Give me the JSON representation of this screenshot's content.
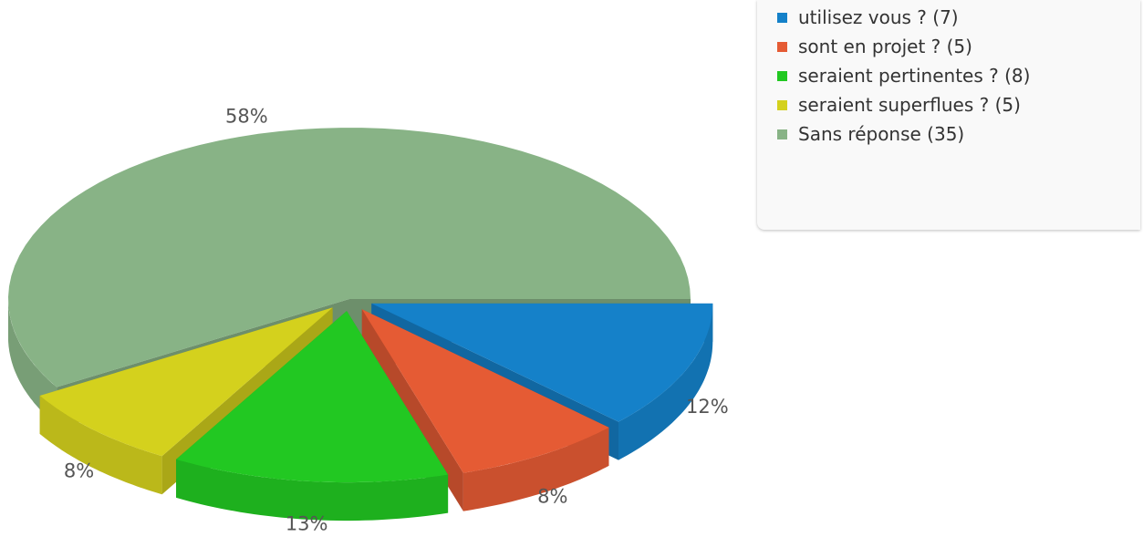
{
  "chart_data": {
    "type": "pie3d",
    "categories": [
      "utilisez vous ? (7)",
      "sont en projet ? (5)",
      "seraient pertinentes ? (8)",
      "seraient superflues ? (5)",
      "Sans réponse (35)"
    ],
    "values": [
      12,
      8,
      13,
      8,
      58
    ],
    "value_labels": [
      "12%",
      "8%",
      "13%",
      "8%",
      "58%"
    ],
    "colors": [
      "#1581c9",
      "#e55b34",
      "#22c822",
      "#d4d11d",
      "#88b386"
    ],
    "legend": "top-right"
  }
}
